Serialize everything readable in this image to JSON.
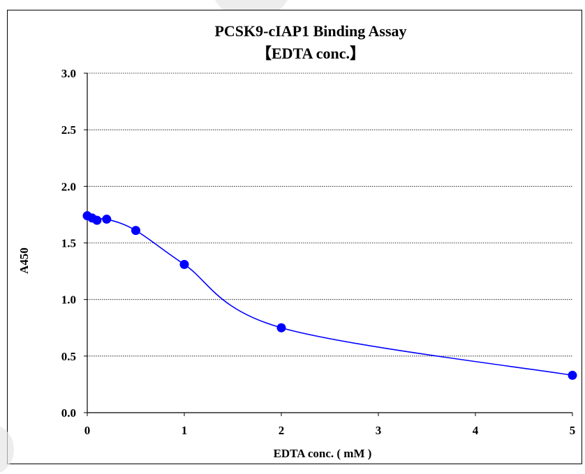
{
  "chart_data": {
    "type": "scatter",
    "title": "PCSK9-cIAP1 Binding Assay",
    "subtitle": "【EDTA conc.】",
    "xlabel": "EDTA conc. ( mM )",
    "ylabel": "A450",
    "x_ticks": [
      "0",
      "1",
      "2",
      "3",
      "4",
      "5"
    ],
    "y_ticks": [
      "0.0",
      "0.5",
      "1.0",
      "1.5",
      "2.0",
      "2.5",
      "3.0"
    ],
    "xlim": [
      0,
      5
    ],
    "ylim": [
      0,
      3
    ],
    "grid": "horizontal",
    "series": [
      {
        "color": "#0000ff",
        "points": [
          {
            "x": 0,
            "y": 1.74
          },
          {
            "x": 0.05,
            "y": 1.72
          },
          {
            "x": 0.1,
            "y": 1.7
          },
          {
            "x": 0.2,
            "y": 1.71
          },
          {
            "x": 0.5,
            "y": 1.61
          },
          {
            "x": 1,
            "y": 1.31
          },
          {
            "x": 2,
            "y": 0.75
          },
          {
            "x": 5,
            "y": 0.33
          }
        ]
      }
    ]
  }
}
